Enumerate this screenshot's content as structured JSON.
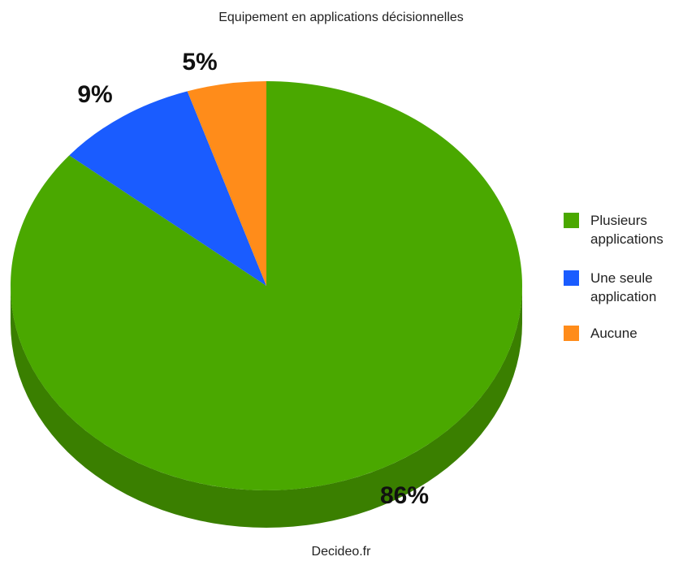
{
  "chart_data": {
    "type": "pie",
    "title": "Equipement en applications décisionnelles",
    "categories": [
      "Plusieurs applications",
      "Une seule application",
      "Aucune"
    ],
    "values": [
      86,
      9,
      5
    ],
    "labels": [
      "86%",
      "9%",
      "5%"
    ],
    "colors": [
      "#4aa800",
      "#1a5cff",
      "#ff8c1a"
    ],
    "side_colors": [
      "#3a7f00",
      "#1446bf",
      "#c06a12"
    ],
    "legend_placement": "right",
    "legend": [
      {
        "lines": [
          "Plusieurs",
          "applications"
        ]
      },
      {
        "lines": [
          "Une seule",
          "application"
        ]
      },
      {
        "lines": [
          "Aucune"
        ]
      }
    ],
    "three_d": true
  },
  "source": "Decideo.fr"
}
